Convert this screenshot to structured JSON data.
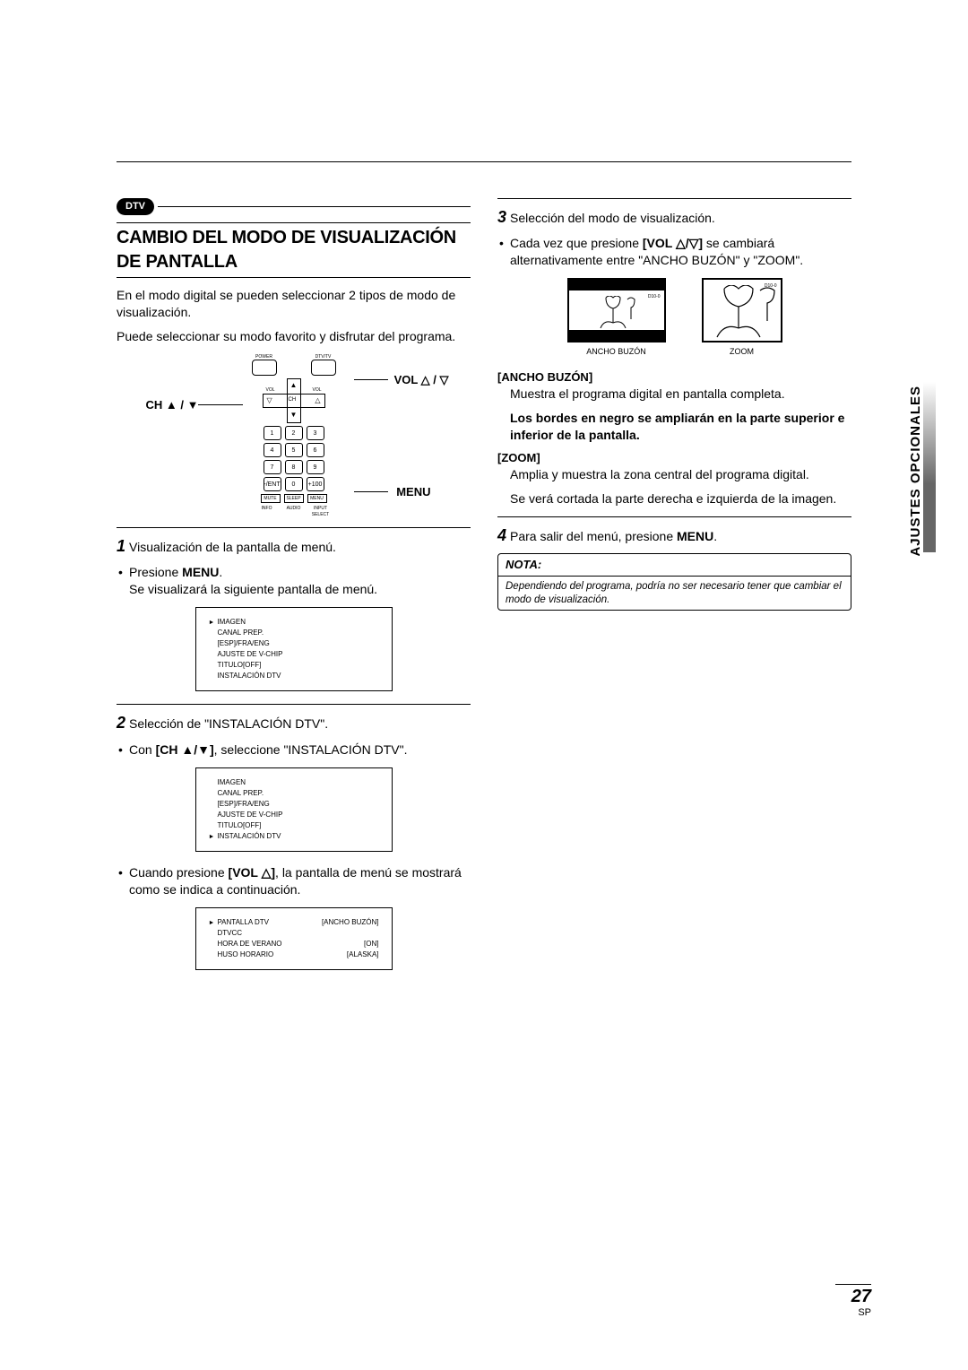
{
  "sideTab": "AJUSTES OPCIONALES",
  "dtvBadge": "DTV",
  "title": "CAMBIO DEL MODO DE VISUALIZACIÓN DE PANTALLA",
  "intro1": "En el modo digital se pueden seleccionar 2 tipos de modo de visualización.",
  "intro2": "Puede seleccionar su modo favorito y disfrutar del programa.",
  "remote": {
    "volLabel": "VOL △ / ▽",
    "chLabel": "CH ▲ / ▼",
    "menuLabel": "MENU",
    "topRow": {
      "left": "POWER",
      "right": "DTV/TV"
    },
    "cross": {
      "volL": "VOL",
      "volR": "VOL",
      "ch": "CH"
    },
    "numpad": [
      [
        "1",
        "2",
        "3"
      ],
      [
        "4",
        "5",
        "6"
      ],
      [
        "7",
        "8",
        "9"
      ],
      [
        "-/ENT",
        "0",
        "+100"
      ]
    ],
    "bottomRow1": [
      "MUTE",
      "SLEEP",
      "MENU"
    ],
    "bottomRow2": [
      "INFO",
      "AUDIO",
      "INPUT\nSELECT"
    ]
  },
  "step1": {
    "head": "Visualización de la pantalla de menú.",
    "b1a": "Presione ",
    "b1bold": "MENU",
    "b1b": ".",
    "line2": "Se visualizará la siguiente pantalla de menú."
  },
  "menu1": {
    "items": [
      "IMAGEN",
      "CANAL PREP.",
      "[ESP]/FRA/ENG",
      "AJUSTE DE V-CHIP",
      "TITULO[OFF]",
      "INSTALACIÓN DTV"
    ],
    "pointerIndex": 0
  },
  "step2": {
    "head": "Selección de \"INSTALACIÓN DTV\".",
    "b1a": "Con ",
    "b1bold": "[CH ▲/▼]",
    "b1b": ", seleccione \"INSTALACIÓN DTV\"."
  },
  "menu2": {
    "items": [
      "IMAGEN",
      "CANAL PREP.",
      "[ESP]/FRA/ENG",
      "AJUSTE DE V-CHIP",
      "TITULO[OFF]",
      "INSTALACIÓN DTV"
    ],
    "pointerIndex": 5
  },
  "step2b": {
    "b1a": "Cuando presione ",
    "b1bold": "[VOL △]",
    "b1b": ", la pantalla de menú se mostrará como se indica a continuación."
  },
  "menu3": {
    "rows": [
      {
        "l": "PANTALLA DTV",
        "r": "[ANCHO BUZÓN]",
        "ptr": true
      },
      {
        "l": "DTVCC",
        "r": "",
        "ptr": false
      },
      {
        "l": "HORA DE VERANO",
        "r": "[ON]",
        "ptr": false
      },
      {
        "l": "HUSO HORARIO",
        "r": "[ALASKA]",
        "ptr": false
      }
    ]
  },
  "step3": {
    "head": "Selección del modo de visualización.",
    "b1a": "Cada vez que presione ",
    "b1bold": "[VOL △/▽]",
    "b1b": " se cambiará alternativamente entre \"ANCHO BUZÓN\" y \"ZOOM\"."
  },
  "modes": {
    "wide": {
      "label": "ANCHO BUZÓN",
      "d10": "D10-0"
    },
    "zoom": {
      "label": "ZOOM",
      "d10": "D10-0"
    }
  },
  "ancho": {
    "hd": "[ANCHO BUZÓN]",
    "l1": "Muestra el programa digital en pantalla completa.",
    "l2": "Los bordes en negro se ampliarán en la parte superior e inferior de la pantalla."
  },
  "zoom": {
    "hd": "[ZOOM]",
    "l1": "Amplia y muestra la zona central del programa digital.",
    "l2": "Se verá cortada la parte derecha e izquierda de la imagen."
  },
  "step4": {
    "a": "Para salir del menú, presione ",
    "bold": "MENU",
    "b": "."
  },
  "note": {
    "hd": "NOTA:",
    "body": "Dependiendo del programa, podría no ser necesario tener que cambiar el modo de visualización."
  },
  "page": {
    "num": "27",
    "sp": "SP"
  }
}
